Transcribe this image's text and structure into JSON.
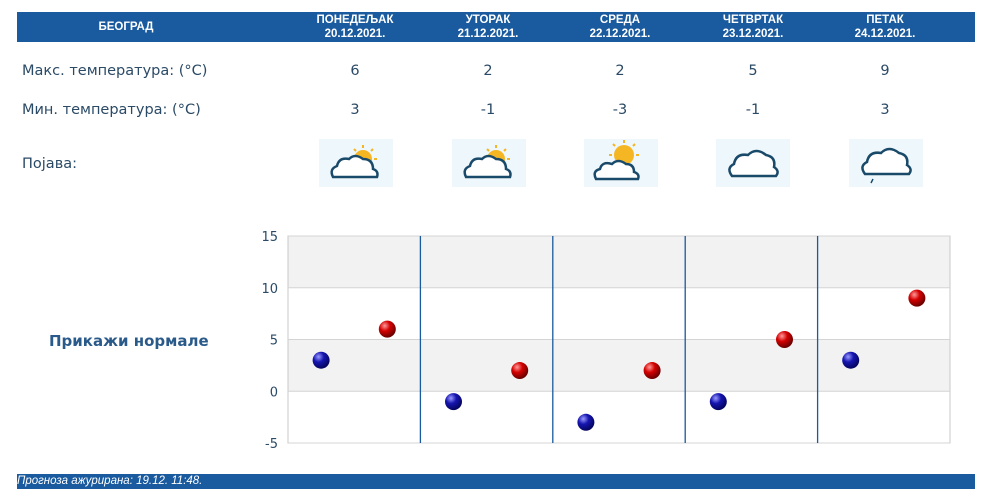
{
  "header": {
    "city": "БЕОГРАД",
    "days": [
      {
        "name": "ПОНЕДЕЉАК",
        "date": "20.12.2021."
      },
      {
        "name": "УТОРАК",
        "date": "21.12.2021."
      },
      {
        "name": "СРЕДА",
        "date": "22.12.2021."
      },
      {
        "name": "ЧЕТВРТАК",
        "date": "23.12.2021."
      },
      {
        "name": "ПЕТАК",
        "date": "24.12.2021."
      }
    ]
  },
  "labels": {
    "max": "Макс. температура: (°C)",
    "min": "Мин. температура: (°C)",
    "phenomenon": "Појава:"
  },
  "max_temps": [
    "6",
    "2",
    "2",
    "5",
    "9"
  ],
  "min_temps": [
    "3",
    "-1",
    "-3",
    "-1",
    "3"
  ],
  "icons": [
    "partly-cloudy-icon",
    "partly-cloudy-icon",
    "sun-behind-cloud-icon",
    "cloud-icon",
    "cloud-light-rain-icon"
  ],
  "show_normals": "Прикажи нормале",
  "footer": {
    "updated": "Прогноза ажурирана:  19.12. 11:48."
  },
  "colors": {
    "header_bg": "#1a5a9e",
    "max_point": "#cc0000",
    "min_point": "#1010aa",
    "divider": "#1a5a9e"
  },
  "chart_data": {
    "type": "scatter",
    "categories": [
      "ПОНЕДЕЉАК",
      "УТОРАК",
      "СРЕДА",
      "ЧЕТВРТАК",
      "ПЕТАК"
    ],
    "series": [
      {
        "values": [
          3,
          -1,
          -3,
          -1,
          3
        ],
        "color": "#1010aa"
      },
      {
        "values": [
          6,
          2,
          2,
          5,
          9
        ],
        "color": "#cc0000"
      }
    ],
    "yticks": [
      "15",
      "10",
      "5",
      "0",
      "-5"
    ],
    "ylim": [
      -5,
      15
    ],
    "grid": true
  }
}
